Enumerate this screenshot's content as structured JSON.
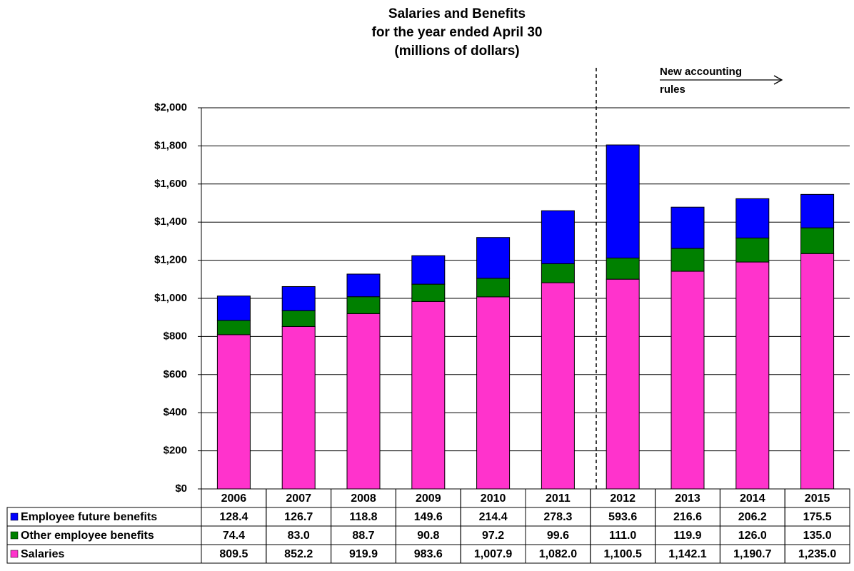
{
  "chart_data": {
    "type": "stacked_bar",
    "title": [
      "Salaries and Benefits",
      "for the year ended April 30",
      "(millions of dollars)"
    ],
    "annotation": [
      "New accounting",
      "rules"
    ],
    "categories": [
      "2006",
      "2007",
      "2008",
      "2009",
      "2010",
      "2011",
      "2012",
      "2013",
      "2014",
      "2015"
    ],
    "series": [
      {
        "name": "Salaries",
        "color": "#ff33cc",
        "values": [
          809.5,
          852.2,
          919.9,
          983.6,
          1007.9,
          1082.0,
          1100.5,
          1142.1,
          1190.7,
          1235.0
        ],
        "value_labels": [
          "809.5",
          "852.2",
          "919.9",
          "983.6",
          "1,007.9",
          "1,082.0",
          "1,100.5",
          "1,142.1",
          "1,190.7",
          "1,235.0"
        ]
      },
      {
        "name": "Other employee benefits",
        "color": "#008000",
        "values": [
          74.4,
          83.0,
          88.7,
          90.8,
          97.2,
          99.6,
          111.0,
          119.9,
          126.0,
          135.0
        ],
        "value_labels": [
          "74.4",
          "83.0",
          "88.7",
          "90.8",
          "97.2",
          "99.6",
          "111.0",
          "119.9",
          "126.0",
          "135.0"
        ]
      },
      {
        "name": "Employee future benefits",
        "color": "#0000ff",
        "values": [
          128.4,
          126.7,
          118.8,
          149.6,
          214.4,
          278.3,
          593.6,
          216.6,
          206.2,
          175.5
        ],
        "value_labels": [
          "128.4",
          "126.7",
          "118.8",
          "149.6",
          "214.4",
          "278.3",
          "593.6",
          "216.6",
          "206.2",
          "175.5"
        ]
      }
    ],
    "ylim": [
      0,
      2000
    ],
    "yticks": [
      {
        "value": 0,
        "label": "$0"
      },
      {
        "value": 200,
        "label": "$200"
      },
      {
        "value": 400,
        "label": "$400"
      },
      {
        "value": 600,
        "label": "$600"
      },
      {
        "value": 800,
        "label": "$800"
      },
      {
        "value": 1000,
        "label": "$1,000"
      },
      {
        "value": 1200,
        "label": "$1,200"
      },
      {
        "value": 1400,
        "label": "$1,400"
      },
      {
        "value": 1600,
        "label": "$1,600"
      },
      {
        "value": 1800,
        "label": "$1,800"
      },
      {
        "value": 2000,
        "label": "$2,000"
      }
    ],
    "grid": true
  }
}
